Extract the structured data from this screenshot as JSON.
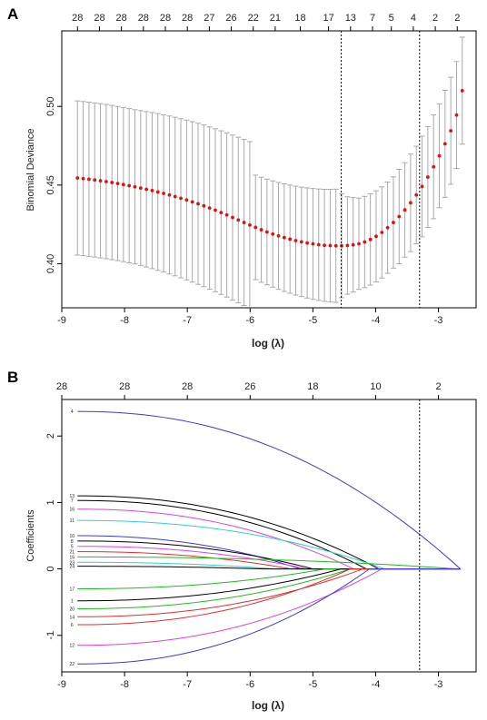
{
  "panels": {
    "a": {
      "label": "A"
    },
    "b": {
      "label": "B"
    }
  },
  "chart_data": [
    {
      "type": "scatter",
      "ylabel": "Binomial Deviance",
      "xlabel": "log (λ)",
      "xlim": [
        -9,
        -2.4
      ],
      "ylim": [
        0.372,
        0.548
      ],
      "xticks": [
        -9,
        -8,
        -7,
        -6,
        -5,
        -4,
        -3
      ],
      "yticks": [
        0.4,
        0.45,
        0.5
      ],
      "ytick_labels": [
        "0.40",
        "0.45",
        "0.50"
      ],
      "top_axis": {
        "labels": [
          "28",
          "28",
          "28",
          "28",
          "28",
          "28",
          "27",
          "26",
          "22",
          "21",
          "18",
          "17",
          "13",
          "7",
          "5",
          "4",
          "2",
          "2"
        ],
        "x": [
          -8.75,
          -8.4,
          -8.05,
          -7.7,
          -7.35,
          -7.0,
          -6.65,
          -6.3,
          -5.95,
          -5.6,
          -5.2,
          -4.75,
          -4.4,
          -4.05,
          -3.75,
          -3.4,
          -3.05,
          -2.7
        ]
      },
      "vlines": [
        -4.55,
        -3.3
      ],
      "points": {
        "x_start": -8.75,
        "x_end": -2.62,
        "count": 68,
        "y": [
          0.4545,
          0.4541,
          0.4537,
          0.4532,
          0.4527,
          0.4522,
          0.4516,
          0.451,
          0.4503,
          0.4496,
          0.4489,
          0.4481,
          0.4473,
          0.4465,
          0.4456,
          0.4447,
          0.4437,
          0.4427,
          0.4416,
          0.4405,
          0.4393,
          0.4381,
          0.4368,
          0.4354,
          0.434,
          0.4325,
          0.431,
          0.4294,
          0.4278,
          0.4262,
          0.4246,
          0.4231,
          0.4216,
          0.4202,
          0.4189,
          0.4177,
          0.4166,
          0.4156,
          0.4147,
          0.4139,
          0.4132,
          0.4126,
          0.4121,
          0.4117,
          0.4115,
          0.4114,
          0.4114,
          0.4116,
          0.412,
          0.4127,
          0.4138,
          0.4154,
          0.4174,
          0.4199,
          0.4229,
          0.4262,
          0.43,
          0.4342,
          0.4387,
          0.4437,
          0.4491,
          0.4551,
          0.4616,
          0.4686,
          0.4762,
          0.4845,
          0.4945,
          0.51
        ],
        "err": [
          0.049,
          0.049,
          0.049,
          0.049,
          0.049,
          0.049,
          0.049,
          0.049,
          0.049,
          0.049,
          0.049,
          0.0492,
          0.0494,
          0.0496,
          0.0498,
          0.05,
          0.0502,
          0.0504,
          0.0506,
          0.0508,
          0.051,
          0.0512,
          0.0514,
          0.0516,
          0.0518,
          0.052,
          0.0522,
          0.0524,
          0.0526,
          0.0528,
          0.053,
          0.0332,
          0.0334,
          0.0336,
          0.0338,
          0.034,
          0.0342,
          0.0344,
          0.0346,
          0.0348,
          0.035,
          0.0352,
          0.0354,
          0.0356,
          0.0358,
          0.036,
          0.033,
          0.031,
          0.03,
          0.029,
          0.029,
          0.029,
          0.029,
          0.029,
          0.029,
          0.029,
          0.03,
          0.03,
          0.031,
          0.031,
          0.032,
          0.032,
          0.033,
          0.033,
          0.034,
          0.034,
          0.034,
          0.034
        ]
      }
    },
    {
      "type": "line",
      "ylabel": "Coefficients",
      "xlabel": "log (λ)",
      "xlim": [
        -9,
        -2.4
      ],
      "ylim": [
        -1.55,
        2.55
      ],
      "xticks": [
        -9,
        -8,
        -7,
        -6,
        -5,
        -4,
        -3
      ],
      "yticks": [
        -1,
        0,
        1,
        2
      ],
      "top_axis": {
        "labels": [
          "28",
          "28",
          "28",
          "26",
          "18",
          "10",
          "2"
        ],
        "x": [
          -9,
          -8,
          -7,
          -6,
          -5,
          -4,
          -3
        ]
      },
      "vlines": [
        -3.3
      ],
      "x_start": -8.75,
      "x_end": -2.65,
      "series": [
        {
          "label": "4",
          "color": "#3b3bd6",
          "start": 2.37,
          "zero_at": -2.65
        },
        {
          "label": "13",
          "color": "#000000",
          "start": 1.1,
          "zero_at": -3.95
        },
        {
          "label": "7",
          "color": "#000000",
          "start": 1.03,
          "zero_at": -4.15
        },
        {
          "label": "16",
          "color": "#e040e0",
          "start": 0.9,
          "zero_at": -4.35
        },
        {
          "label": "11",
          "color": "#30d0d0",
          "start": 0.73,
          "zero_at": -3.85
        },
        {
          "label": "10",
          "color": "#3b3bd6",
          "start": 0.5,
          "zero_at": -5.2
        },
        {
          "label": "8",
          "color": "#000000",
          "start": 0.42,
          "zero_at": -5.0
        },
        {
          "label": "5",
          "color": "#e040e0",
          "start": 0.34,
          "zero_at": -5.1
        },
        {
          "label": "21",
          "color": "#e03030",
          "start": 0.26,
          "zero_at": -5.35
        },
        {
          "label": "15",
          "color": "#22bb22",
          "start": 0.18,
          "zero_at": -2.7
        },
        {
          "label": "23",
          "color": "#30d0d0",
          "start": 0.1,
          "zero_at": -5.6
        },
        {
          "label": "24",
          "color": "#000000",
          "start": 0.04,
          "zero_at": -5.8
        },
        {
          "label": "17",
          "color": "#22bb22",
          "start": -0.3,
          "zero_at": -4.8
        },
        {
          "label": "1",
          "color": "#000000",
          "start": -0.48,
          "zero_at": -4.55
        },
        {
          "label": "20",
          "color": "#22bb22",
          "start": -0.6,
          "zero_at": -4.4
        },
        {
          "label": "14",
          "color": "#e03030",
          "start": -0.72,
          "zero_at": -4.2
        },
        {
          "label": "6",
          "color": "#e03030",
          "start": -0.84,
          "zero_at": -4.4
        },
        {
          "label": "12",
          "color": "#e040e0",
          "start": -1.15,
          "zero_at": -3.9
        },
        {
          "label": "22",
          "color": "#3b3bd6",
          "start": -1.43,
          "zero_at": -4.1
        }
      ]
    }
  ]
}
